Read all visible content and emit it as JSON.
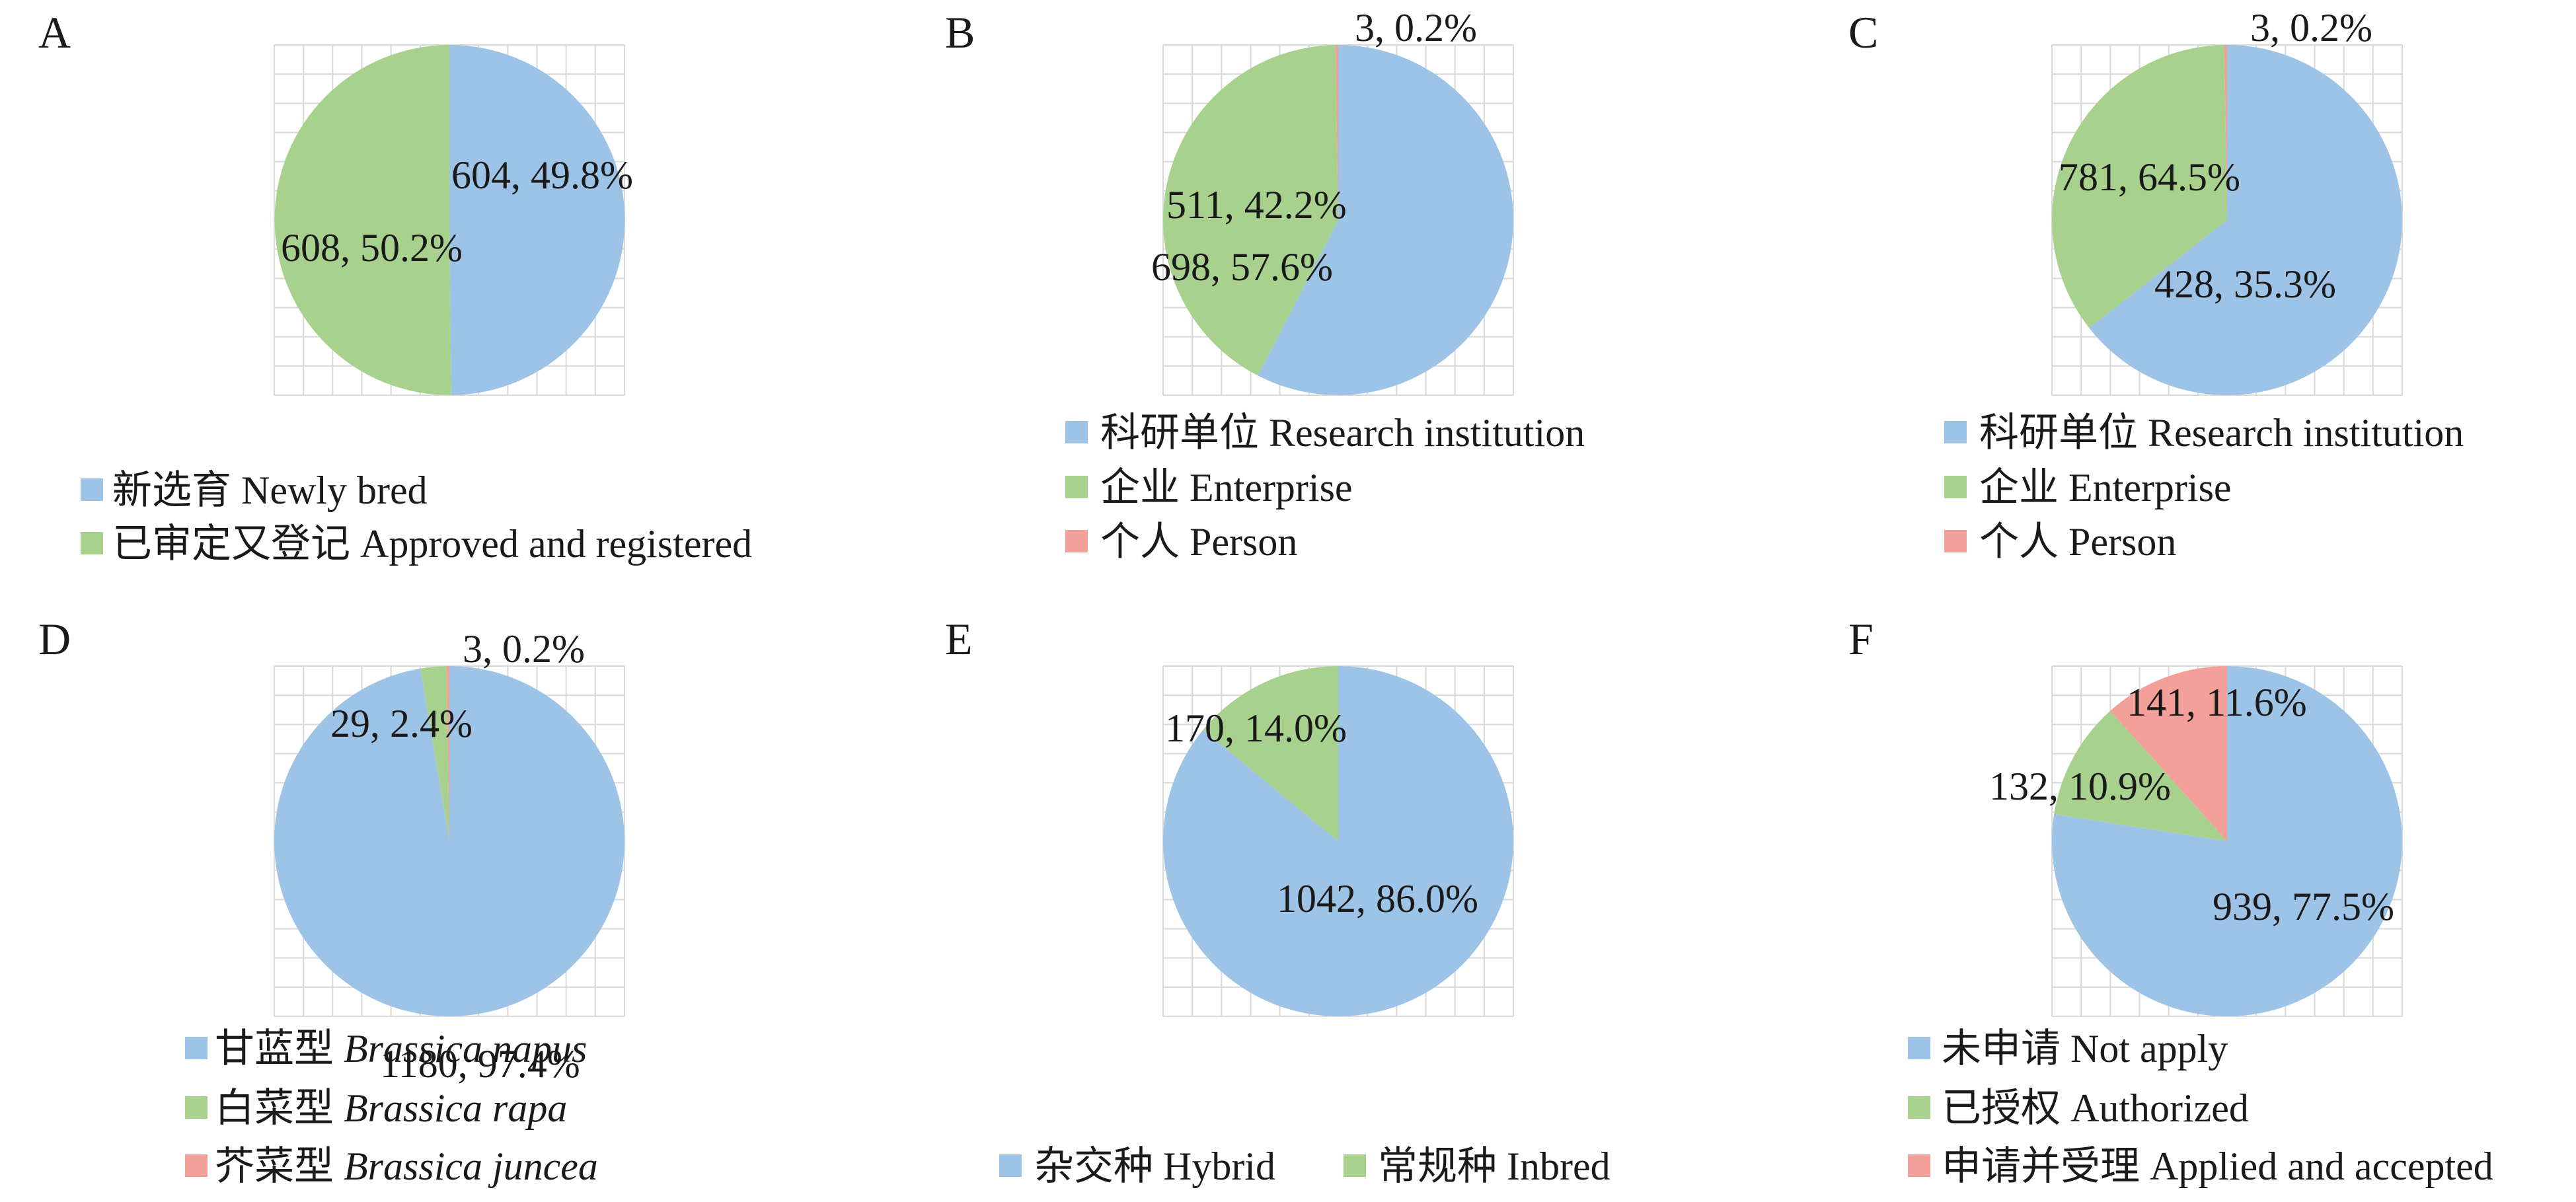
{
  "colors": {
    "blue": "#9DC3E6",
    "green": "#A9D18E",
    "red": "#F4A09A",
    "grid": "#d9d9d9",
    "text": "#1a1a1a"
  },
  "chart_data": [
    {
      "panel": "A",
      "type": "pie",
      "slices": [
        {
          "name": "新选育 Newly bred",
          "value": 604,
          "percent": 49.8,
          "label": "604, 49.8%",
          "color": "#9DC3E6"
        },
        {
          "name": "已审定又登记 Approved and registered",
          "value": 608,
          "percent": 50.2,
          "label": "608, 50.2%",
          "color": "#A9D18E"
        }
      ],
      "legend": [
        {
          "parts": [
            {
              "text": "新选育 Newly bred",
              "italic": false
            }
          ],
          "color": "#9DC3E6"
        },
        {
          "parts": [
            {
              "text": "已审定又登记 Approved and registered",
              "italic": false
            }
          ],
          "color": "#A9D18E"
        }
      ]
    },
    {
      "panel": "B",
      "type": "pie",
      "slices": [
        {
          "name": "科研单位 Research institution",
          "value": 698,
          "percent": 57.6,
          "label": "698, 57.6%",
          "color": "#9DC3E6"
        },
        {
          "name": "企业 Enterprise",
          "value": 511,
          "percent": 42.2,
          "label": "511, 42.2%",
          "color": "#A9D18E"
        },
        {
          "name": "个人 Person",
          "value": 3,
          "percent": 0.2,
          "label": "3, 0.2%",
          "color": "#F4A09A"
        }
      ],
      "legend": [
        {
          "parts": [
            {
              "text": "科研单位 Research institution",
              "italic": false
            }
          ],
          "color": "#9DC3E6"
        },
        {
          "parts": [
            {
              "text": "企业 Enterprise",
              "italic": false
            }
          ],
          "color": "#A9D18E"
        },
        {
          "parts": [
            {
              "text": "个人 Person",
              "italic": false
            }
          ],
          "color": "#F4A09A"
        }
      ]
    },
    {
      "panel": "C",
      "type": "pie",
      "slices": [
        {
          "name": "科研单位 Research institution",
          "value": 781,
          "percent": 64.5,
          "label": "781, 64.5%",
          "color": "#9DC3E6"
        },
        {
          "name": "企业 Enterprise",
          "value": 428,
          "percent": 35.3,
          "label": "428, 35.3%",
          "color": "#A9D18E"
        },
        {
          "name": "个人 Person",
          "value": 3,
          "percent": 0.2,
          "label": "3, 0.2%",
          "color": "#F4A09A"
        }
      ],
      "legend": [
        {
          "parts": [
            {
              "text": "科研单位 Research institution",
              "italic": false
            }
          ],
          "color": "#9DC3E6"
        },
        {
          "parts": [
            {
              "text": "企业 Enterprise",
              "italic": false
            }
          ],
          "color": "#A9D18E"
        },
        {
          "parts": [
            {
              "text": "个人 Person",
              "italic": false
            }
          ],
          "color": "#F4A09A"
        }
      ]
    },
    {
      "panel": "D",
      "type": "pie",
      "slices": [
        {
          "name": "甘蓝型 Brassica napus",
          "value": 1180,
          "percent": 97.4,
          "label": "1180, 97.4%",
          "color": "#9DC3E6"
        },
        {
          "name": "白菜型 Brassica rapa",
          "value": 29,
          "percent": 2.4,
          "label": "29, 2.4%",
          "color": "#A9D18E"
        },
        {
          "name": "芥菜型 Brassica juncea",
          "value": 3,
          "percent": 0.2,
          "label": "3, 0.2%",
          "color": "#F4A09A"
        }
      ],
      "legend": [
        {
          "parts": [
            {
              "text": "甘蓝型 ",
              "italic": false
            },
            {
              "text": "Brassica napus",
              "italic": true
            }
          ],
          "color": "#9DC3E6"
        },
        {
          "parts": [
            {
              "text": "白菜型 ",
              "italic": false
            },
            {
              "text": "Brassica rapa",
              "italic": true
            }
          ],
          "color": "#A9D18E"
        },
        {
          "parts": [
            {
              "text": "芥菜型 ",
              "italic": false
            },
            {
              "text": "Brassica juncea",
              "italic": true
            }
          ],
          "color": "#F4A09A"
        }
      ]
    },
    {
      "panel": "E",
      "type": "pie",
      "slices": [
        {
          "name": "杂交种 Hybrid",
          "value": 1042,
          "percent": 86.0,
          "label": "1042, 86.0%",
          "color": "#9DC3E6"
        },
        {
          "name": "常规种 Inbred",
          "value": 170,
          "percent": 14.0,
          "label": "170, 14.0%",
          "color": "#A9D18E"
        }
      ],
      "legend": [
        {
          "parts": [
            {
              "text": "杂交种 Hybrid",
              "italic": false
            }
          ],
          "color": "#9DC3E6"
        },
        {
          "parts": [
            {
              "text": "常规种 Inbred",
              "italic": false
            }
          ],
          "color": "#A9D18E"
        }
      ]
    },
    {
      "panel": "F",
      "type": "pie",
      "slices": [
        {
          "name": "未申请 Not apply",
          "value": 939,
          "percent": 77.5,
          "label": "939, 77.5%",
          "color": "#9DC3E6"
        },
        {
          "name": "已授权 Authorized",
          "value": 132,
          "percent": 10.9,
          "label": "132, 10.9%",
          "color": "#A9D18E"
        },
        {
          "name": "申请并受理 Applied and accepted",
          "value": 141,
          "percent": 11.6,
          "label": "141, 11.6%",
          "color": "#F4A09A"
        }
      ],
      "legend": [
        {
          "parts": [
            {
              "text": "未申请 Not apply",
              "italic": false
            }
          ],
          "color": "#9DC3E6"
        },
        {
          "parts": [
            {
              "text": "已授权 Authorized",
              "italic": false
            }
          ],
          "color": "#A9D18E"
        },
        {
          "parts": [
            {
              "text": "申请并受理 Applied and accepted",
              "italic": false
            }
          ],
          "color": "#F4A09A"
        }
      ]
    }
  ]
}
